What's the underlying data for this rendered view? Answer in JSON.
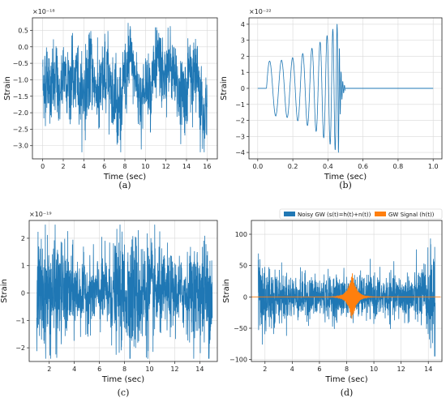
{
  "chart_data": [
    {
      "id": "a",
      "type": "line",
      "caption": "(a)",
      "xlabel": "Time (sec)",
      "ylabel": "Strain",
      "sci_offset": "×10⁻¹⁸",
      "xlim": [
        -1,
        17
      ],
      "ylim": [
        -3.4,
        0.88
      ],
      "xticks": [
        0,
        2,
        4,
        6,
        8,
        10,
        12,
        14,
        16
      ],
      "yticks": [
        -3.0,
        -2.5,
        -2.0,
        -1.5,
        -1.0,
        -0.5,
        0.0,
        0.5
      ],
      "ytick_labels": [
        "−3.0",
        "−2.5",
        "−2.0",
        "−1.5",
        "−1.0",
        "−0.5",
        "0.0",
        "0.5"
      ],
      "grid": true,
      "series": [
        {
          "color": "#1f77b4",
          "x_range": [
            0,
            16
          ],
          "center": -1.1,
          "envelope_min": -3.2,
          "envelope_max": 0.8
        }
      ]
    },
    {
      "id": "b",
      "type": "line",
      "caption": "(b)",
      "xlabel": "Time (sec)",
      "ylabel": "Strain",
      "sci_offset": "×10⁻²²",
      "xlim": [
        -0.05,
        1.05
      ],
      "ylim": [
        -4.4,
        4.4
      ],
      "xticks": [
        0.0,
        0.2,
        0.4,
        0.6,
        0.8,
        1.0
      ],
      "xtick_labels": [
        "0.0",
        "0.2",
        "0.4",
        "0.6",
        "0.8",
        "1.0"
      ],
      "yticks": [
        -4,
        -3,
        -2,
        -1,
        0,
        1,
        2,
        3,
        4
      ],
      "ytick_labels": [
        "−4",
        "−3",
        "−2",
        "−1",
        "0",
        "1",
        "2",
        "3",
        "4"
      ],
      "grid": true,
      "series": [
        {
          "color": "#1f77b4",
          "chirp_start": 0.05,
          "merger": 0.46,
          "amp_start": 1.7,
          "amp_peak": 4.1,
          "flat_after": 0.5,
          "x_end": 1.0
        }
      ]
    },
    {
      "id": "c",
      "type": "line",
      "caption": "(c)",
      "xlabel": "Time (sec)",
      "ylabel": "Strain",
      "sci_offset": "×10⁻¹⁹",
      "xlim": [
        0.4,
        15.4
      ],
      "ylim": [
        -2.5,
        2.65
      ],
      "xticks": [
        2,
        4,
        6,
        8,
        10,
        12,
        14
      ],
      "yticks": [
        -2,
        -1,
        0,
        1,
        2
      ],
      "ytick_labels": [
        "−2",
        "−1",
        "0",
        "1",
        "2"
      ],
      "grid": true,
      "series": [
        {
          "color": "#1f77b4",
          "x_range": [
            1,
            15
          ],
          "center": 0,
          "envelope_min": -2.4,
          "envelope_max": 2.5
        }
      ]
    },
    {
      "id": "d",
      "type": "line",
      "caption": "(d)",
      "xlabel": "Time (sec)",
      "ylabel": "Strain",
      "xlim": [
        1.0,
        15.0
      ],
      "ylim": [
        -103,
        122
      ],
      "xticks": [
        2,
        4,
        6,
        8,
        10,
        12,
        14
      ],
      "yticks": [
        -100,
        -50,
        0,
        50,
        100
      ],
      "ytick_labels": [
        "−100",
        "−50",
        "0",
        "50",
        "100"
      ],
      "grid": true,
      "legend": "top",
      "series": [
        {
          "name": "Noisy GW (s(t)=h(t)+n(t))",
          "color": "#1f77b4",
          "x_range": [
            1.5,
            14.5
          ],
          "envelope_min": -95,
          "envelope_max": 110
        },
        {
          "name": "GW Signal (h(t))",
          "color": "#ff7f0e",
          "peak_time": 8.4,
          "amp_peak": 40
        }
      ]
    }
  ]
}
